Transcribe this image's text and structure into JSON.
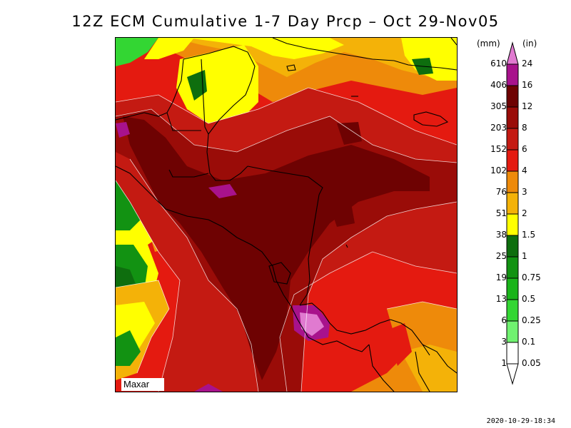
{
  "title": "12Z ECM Cumulative 1-7 Day Prcp – Oct 29-Nov05",
  "logo": "Maxar",
  "timestamp": "2020-10-29-18:34",
  "legend": {
    "mm_header": "(mm)",
    "in_header": "(in)",
    "levels": [
      {
        "mm": "610",
        "in": "24",
        "color": "#e07ad0"
      },
      {
        "mm": "406",
        "in": "16",
        "color": "#a8128c"
      },
      {
        "mm": "305",
        "in": "12",
        "color": "#6e0202"
      },
      {
        "mm": "203",
        "in": "8",
        "color": "#9a0c08"
      },
      {
        "mm": "152",
        "in": "6",
        "color": "#c41a12"
      },
      {
        "mm": "102",
        "in": "4",
        "color": "#e41a10"
      },
      {
        "mm": "76",
        "in": "3",
        "color": "#ee8a0a"
      },
      {
        "mm": "51",
        "in": "2",
        "color": "#f4b208"
      },
      {
        "mm": "38",
        "in": "1.5",
        "color": "#ffff00"
      },
      {
        "mm": "25",
        "in": "1",
        "color": "#0e6e0e"
      },
      {
        "mm": "19",
        "in": "0.75",
        "color": "#129212"
      },
      {
        "mm": "13",
        "in": "0.5",
        "color": "#1ab41a"
      },
      {
        "mm": "6",
        "in": "0.25",
        "color": "#33d633"
      },
      {
        "mm": "3",
        "in": "0.1",
        "color": "#70f270"
      },
      {
        "mm": "1",
        "in": "0.05",
        "color": "#ffffff"
      }
    ]
  },
  "colors": {
    "green_dark": "#0e6e0e",
    "green_mid": "#129212",
    "green_light": "#33d633",
    "yellow": "#ffff00",
    "gold": "#f4b208",
    "orange": "#ee8a0a",
    "red": "#e41a10",
    "red_mid": "#c41a12",
    "red_dark": "#9a0c08",
    "maroon": "#6e0202",
    "magenta": "#a8128c",
    "pink": "#e07ad0"
  }
}
